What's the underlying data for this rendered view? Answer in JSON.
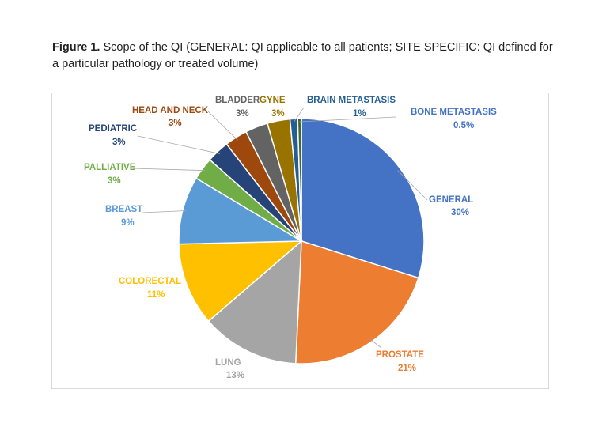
{
  "caption": {
    "prefix": "Figure 1.",
    "text": " Scope of the QI (GENERAL: QI applicable to all patients; SITE SPECIFIC: QI defined for a particular pathology or treated volume)"
  },
  "chart_data": {
    "type": "pie",
    "slices": [
      {
        "name": "GENERAL",
        "value": 30,
        "label": "30%",
        "color": "#4472C4"
      },
      {
        "name": "PROSTATE",
        "value": 21,
        "label": "21%",
        "color": "#ED7D31"
      },
      {
        "name": "LUNG",
        "value": 13,
        "label": "13%",
        "color": "#A5A5A5"
      },
      {
        "name": "COLORECTAL",
        "value": 11,
        "label": "11%",
        "color": "#FFC000"
      },
      {
        "name": "BREAST",
        "value": 9,
        "label": "9%",
        "color": "#5B9BD5"
      },
      {
        "name": "PALLIATIVE",
        "value": 3,
        "label": "3%",
        "color": "#70AD47"
      },
      {
        "name": "PEDIATRIC",
        "value": 3,
        "label": "3%",
        "color": "#264478"
      },
      {
        "name": "HEAD AND NECK",
        "value": 3,
        "label": "3%",
        "color": "#9E480E"
      },
      {
        "name": "BLADDER",
        "value": 3,
        "label": "3%",
        "color": "#636363"
      },
      {
        "name": "GYNE",
        "value": 3,
        "label": "3%",
        "color": "#997300"
      },
      {
        "name": "BRAIN METASTASIS",
        "value": 1,
        "label": "1%",
        "color": "#255E91"
      },
      {
        "name": "BONE METASTASIS",
        "value": 0.5,
        "label": "0.5%",
        "color": "#43682B"
      }
    ]
  }
}
